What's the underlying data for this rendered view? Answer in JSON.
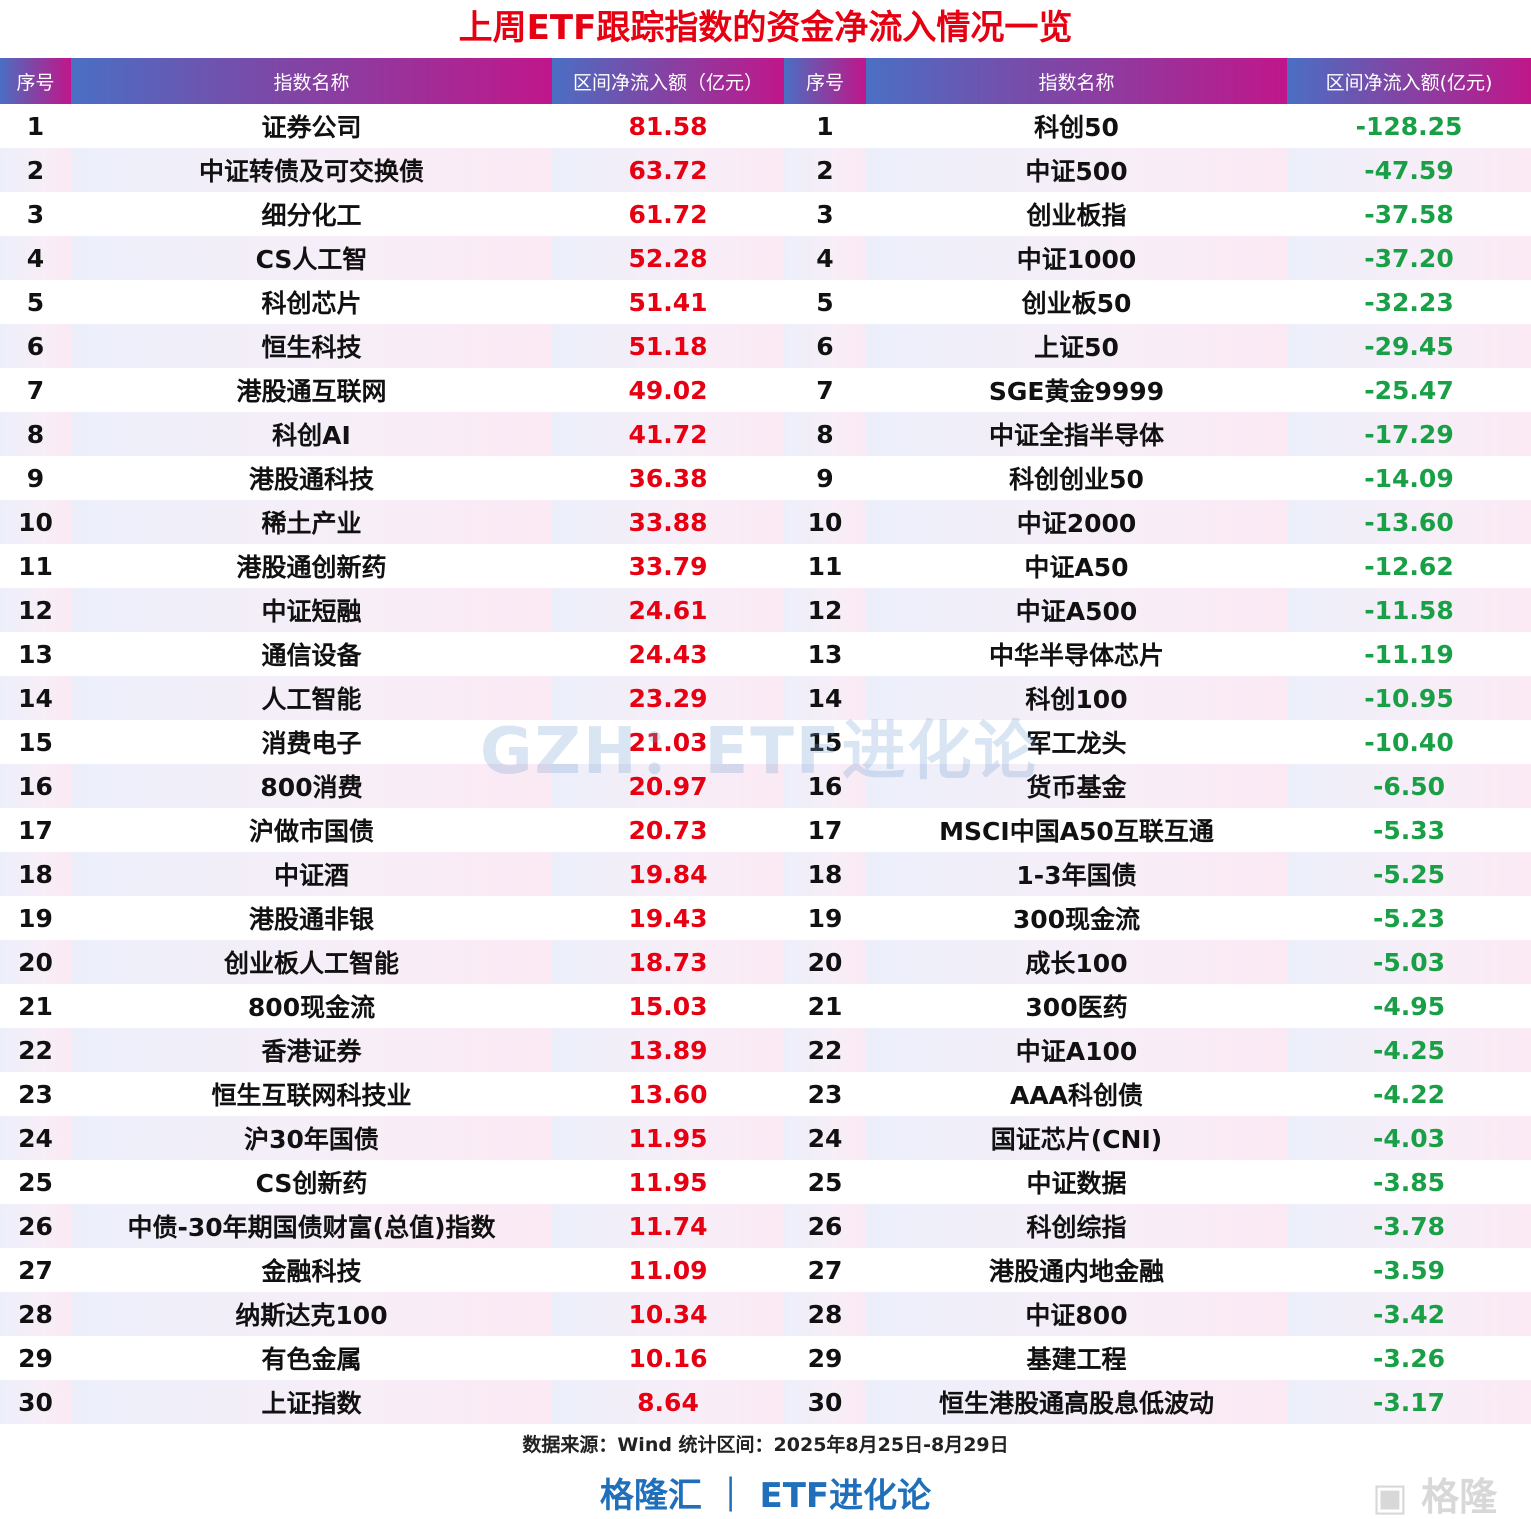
{
  "title": "上周ETF跟踪指数的资金净流入情况一览",
  "left_headers": [
    "序号",
    "指数名称",
    "区间净流入额（亿元）"
  ],
  "right_headers": [
    "序号",
    "指数名称",
    "区间净流入额(亿元)"
  ],
  "inflows": [
    [
      "1",
      "证券公司",
      "81.58"
    ],
    [
      "2",
      "中证转债及可交换债",
      "63.72"
    ],
    [
      "3",
      "细分化工",
      "61.72"
    ],
    [
      "4",
      "CS人工智",
      "52.28"
    ],
    [
      "5",
      "科创芯片",
      "51.41"
    ],
    [
      "6",
      "恒生科技",
      "51.18"
    ],
    [
      "7",
      "港股通互联网",
      "49.02"
    ],
    [
      "8",
      "科创AI",
      "41.72"
    ],
    [
      "9",
      "港股通科技",
      "36.38"
    ],
    [
      "10",
      "稀土产业",
      "33.88"
    ],
    [
      "11",
      "港股通创新药",
      "33.79"
    ],
    [
      "12",
      "中证短融",
      "24.61"
    ],
    [
      "13",
      "通信设备",
      "24.43"
    ],
    [
      "14",
      "人工智能",
      "23.29"
    ],
    [
      "15",
      "消费电子",
      "21.03"
    ],
    [
      "16",
      "800消费",
      "20.97"
    ],
    [
      "17",
      "沪做市国债",
      "20.73"
    ],
    [
      "18",
      "中证酒",
      "19.84"
    ],
    [
      "19",
      "港股通非银",
      "19.43"
    ],
    [
      "20",
      "创业板人工智能",
      "18.73"
    ],
    [
      "21",
      "800现金流",
      "15.03"
    ],
    [
      "22",
      "香港证券",
      "13.89"
    ],
    [
      "23",
      "恒生互联网科技业",
      "13.60"
    ],
    [
      "24",
      "沪30年国债",
      "11.95"
    ],
    [
      "25",
      "CS创新药",
      "11.95"
    ],
    [
      "26",
      "中债-30年期国债财富(总值)指数",
      "11.74"
    ],
    [
      "27",
      "金融科技",
      "11.09"
    ],
    [
      "28",
      "纳斯达克100",
      "10.34"
    ],
    [
      "29",
      "有色金属",
      "10.16"
    ],
    [
      "30",
      "上证指数",
      "8.64"
    ]
  ],
  "outflows": [
    [
      "1",
      "科创50",
      "-128.25"
    ],
    [
      "2",
      "中证500",
      "-47.59"
    ],
    [
      "3",
      "创业板指",
      "-37.58"
    ],
    [
      "4",
      "中证1000",
      "-37.20"
    ],
    [
      "5",
      "创业板50",
      "-32.23"
    ],
    [
      "6",
      "上证50",
      "-29.45"
    ],
    [
      "7",
      "SGE黄金9999",
      "-25.47"
    ],
    [
      "8",
      "中证全指半导体",
      "-17.29"
    ],
    [
      "9",
      "科创创业50",
      "-14.09"
    ],
    [
      "10",
      "中证2000",
      "-13.60"
    ],
    [
      "11",
      "中证A50",
      "-12.62"
    ],
    [
      "12",
      "中证A500",
      "-11.58"
    ],
    [
      "13",
      "中华半导体芯片",
      "-11.19"
    ],
    [
      "14",
      "科创100",
      "-10.95"
    ],
    [
      "15",
      "军工龙头",
      "-10.40"
    ],
    [
      "16",
      "货币基金",
      "-6.50"
    ],
    [
      "17",
      "MSCI中国A50互联互通",
      "-5.33"
    ],
    [
      "18",
      "1-3年国债",
      "-5.25"
    ],
    [
      "19",
      "300现金流",
      "-5.23"
    ],
    [
      "20",
      "成长100",
      "-5.03"
    ],
    [
      "21",
      "300医药",
      "-4.95"
    ],
    [
      "22",
      "中证A100",
      "-4.25"
    ],
    [
      "23",
      "AAA科创债",
      "-4.22"
    ],
    [
      "24",
      "国证芯片(CNI)",
      "-4.03"
    ],
    [
      "25",
      "中证数据",
      "-3.85"
    ],
    [
      "26",
      "科创综指",
      "-3.78"
    ],
    [
      "27",
      "港股通内地金融",
      "-3.59"
    ],
    [
      "28",
      "中证800",
      "-3.42"
    ],
    [
      "29",
      "基建工程",
      "-3.26"
    ],
    [
      "30",
      "恒生港股通高股息低波动",
      "-3.17"
    ]
  ],
  "footer": {
    "source": "数据来源：Wind 统计区间：2025年8月25日-8月29日",
    "brand": "格隆汇 ｜ ETF进化论"
  },
  "watermark": "GZH：ETF进化论",
  "logo": "格隆汇",
  "colors": {
    "inflow": "#e60012",
    "outflow": "#19a046",
    "brand": "#1f6fba"
  }
}
